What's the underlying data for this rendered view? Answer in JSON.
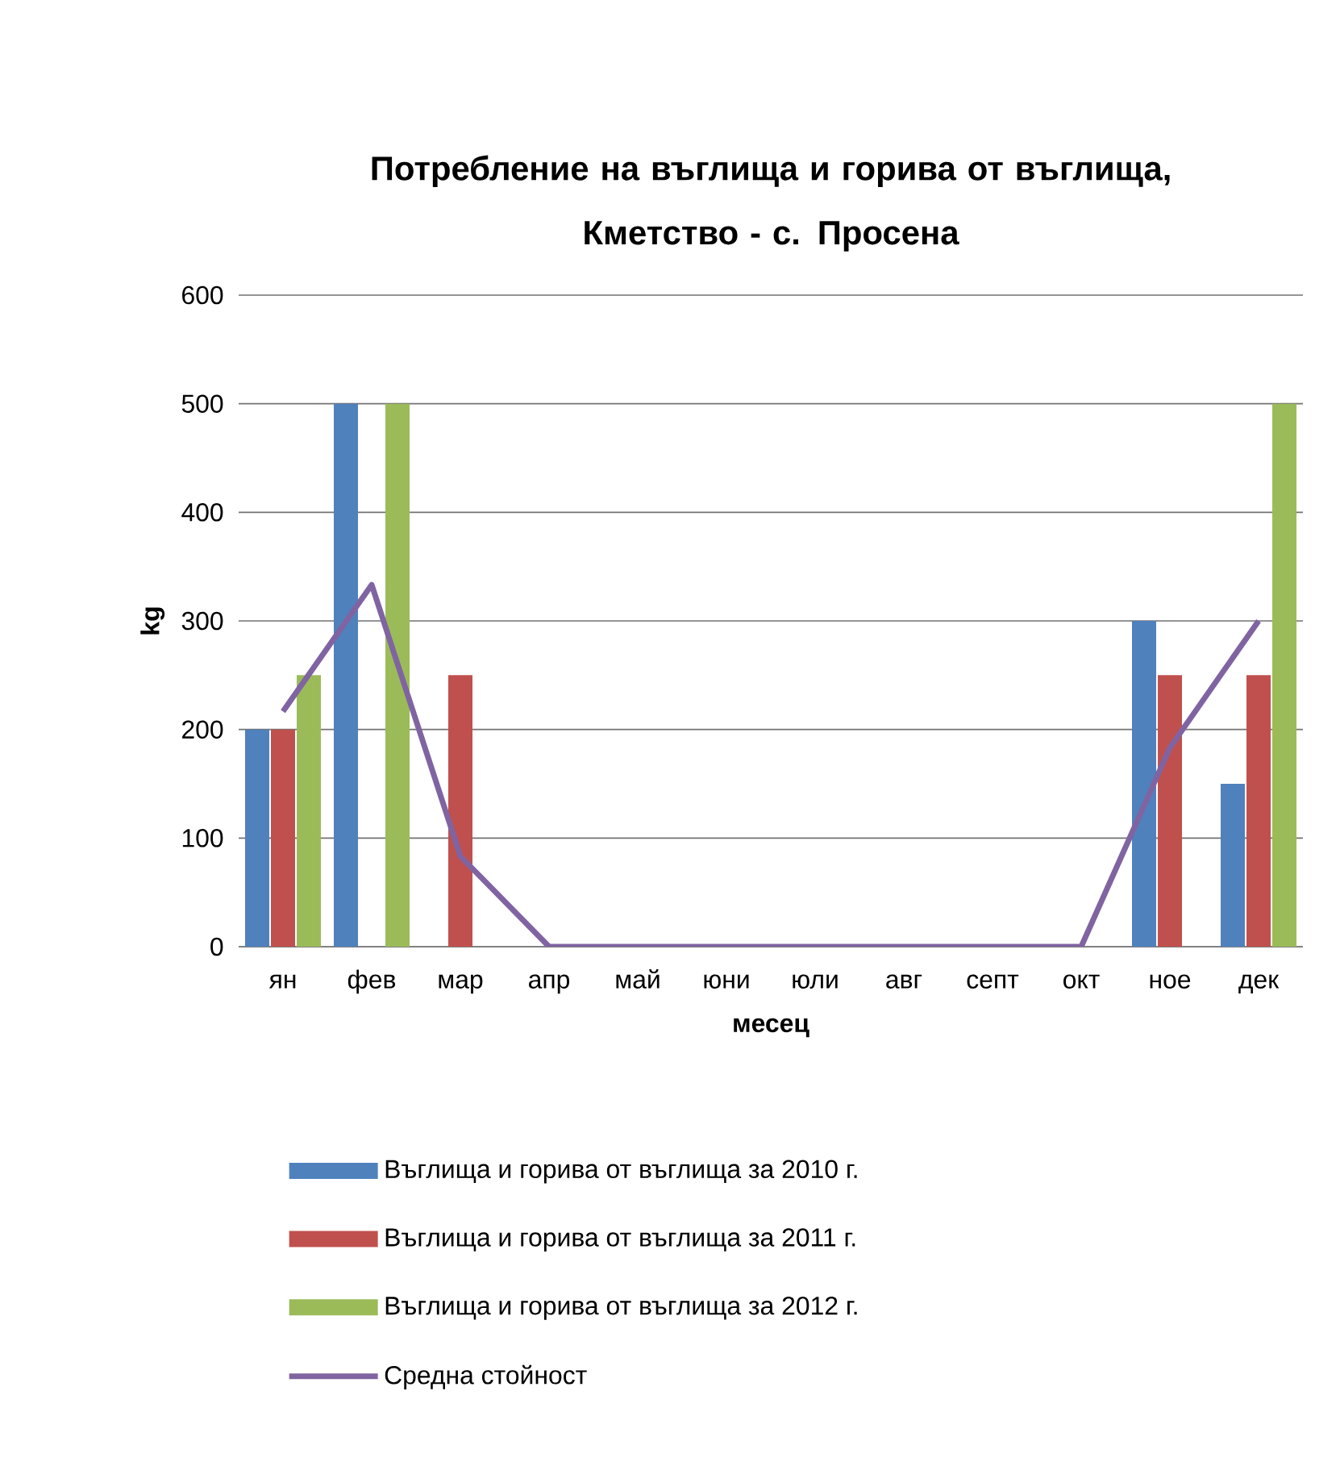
{
  "chart_data": {
    "type": "bar",
    "title": "Потребление на въглища и горива от въглища,",
    "subtitle": "Кметство - с. Просена",
    "xlabel": "месец",
    "ylabel": "kg",
    "categories": [
      "ян",
      "фев",
      "мар",
      "апр",
      "май",
      "юни",
      "юли",
      "авг",
      "септ",
      "окт",
      "ное",
      "дек"
    ],
    "series": [
      {
        "name": "Въглища и горива от въглища за 2010 г.",
        "color": "#4f81bd",
        "values": [
          200,
          500,
          0,
          0,
          0,
          0,
          0,
          0,
          0,
          0,
          300,
          150
        ]
      },
      {
        "name": "Въглища и горива от въглища за 2011 г.",
        "color": "#c0504d",
        "values": [
          200,
          0,
          250,
          0,
          0,
          0,
          0,
          0,
          0,
          0,
          250,
          250
        ]
      },
      {
        "name": "Въглища и горива от въглища за 2012 г.",
        "color": "#9bbb59",
        "values": [
          250,
          500,
          0,
          0,
          0,
          0,
          0,
          0,
          0,
          0,
          0,
          500
        ]
      },
      {
        "name": "Средна стойност",
        "type": "line",
        "color": "#8064a2",
        "values": [
          216.7,
          333.3,
          83.3,
          0,
          0,
          0,
          0,
          0,
          0,
          0,
          183.3,
          300
        ]
      }
    ],
    "ylim": [
      0,
      600
    ],
    "yticks": [
      0,
      100,
      200,
      300,
      400,
      500,
      600
    ],
    "grid": "y",
    "legend": "bottom"
  }
}
